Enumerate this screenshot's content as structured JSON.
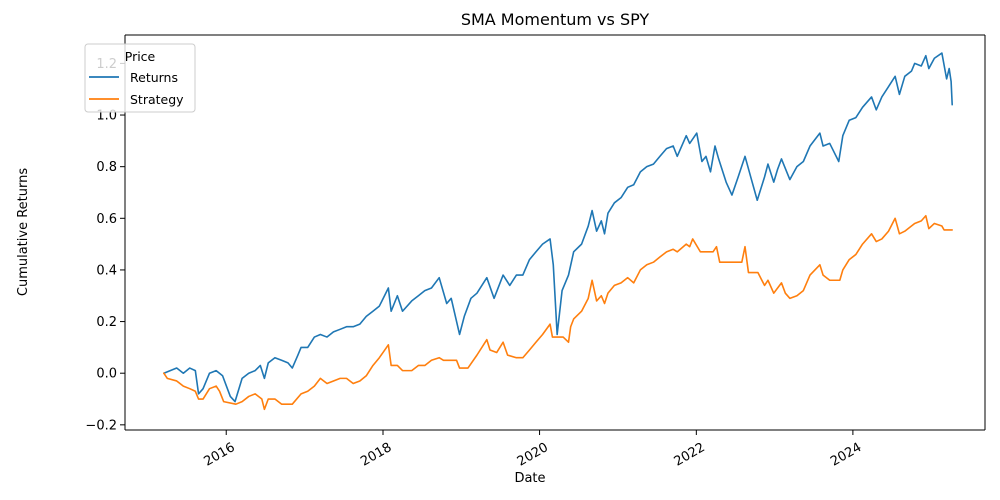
{
  "chart_data": {
    "type": "line",
    "title": "SMA Momentum vs SPY",
    "xlabel": "Date",
    "ylabel": "Cumulative Returns",
    "x_type": "date",
    "xlim": [
      "2014-09-16",
      "2025-09-08"
    ],
    "ylim": [
      -0.22,
      1.31
    ],
    "x_ticks": [
      {
        "label": "2016",
        "date": "2016-01-01"
      },
      {
        "label": "2018",
        "date": "2018-01-01"
      },
      {
        "label": "2020",
        "date": "2020-01-01"
      },
      {
        "label": "2022",
        "date": "2022-01-01"
      },
      {
        "label": "2024",
        "date": "2024-01-01"
      }
    ],
    "y_ticks": [
      {
        "label": "−0.2",
        "value": -0.2
      },
      {
        "label": "0.0",
        "value": 0.0
      },
      {
        "label": "0.2",
        "value": 0.2
      },
      {
        "label": "0.4",
        "value": 0.4
      },
      {
        "label": "0.6",
        "value": 0.6
      },
      {
        "label": "0.8",
        "value": 0.8
      },
      {
        "label": "1.0",
        "value": 1.0
      },
      {
        "label": "1.2",
        "value": 1.2
      }
    ],
    "grid": false,
    "legend": {
      "title": "Price",
      "position": "upper-left"
    },
    "series": [
      {
        "name": "Returns",
        "color": "#1f77b4",
        "points": [
          [
            "2015-03-16",
            0.0
          ],
          [
            "2015-04-15",
            0.01
          ],
          [
            "2015-05-15",
            0.02
          ],
          [
            "2015-06-15",
            0.0
          ],
          [
            "2015-07-15",
            0.02
          ],
          [
            "2015-08-10",
            0.01
          ],
          [
            "2015-08-25",
            -0.08
          ],
          [
            "2015-09-15",
            -0.06
          ],
          [
            "2015-10-15",
            0.0
          ],
          [
            "2015-11-15",
            0.01
          ],
          [
            "2015-12-15",
            -0.01
          ],
          [
            "2016-01-20",
            -0.09
          ],
          [
            "2016-02-11",
            -0.11
          ],
          [
            "2016-03-15",
            -0.02
          ],
          [
            "2016-04-15",
            0.0
          ],
          [
            "2016-05-15",
            0.01
          ],
          [
            "2016-06-08",
            0.03
          ],
          [
            "2016-06-27",
            -0.02
          ],
          [
            "2016-07-15",
            0.04
          ],
          [
            "2016-08-15",
            0.06
          ],
          [
            "2016-09-15",
            0.05
          ],
          [
            "2016-10-15",
            0.04
          ],
          [
            "2016-11-04",
            0.02
          ],
          [
            "2016-11-30",
            0.07
          ],
          [
            "2016-12-15",
            0.1
          ],
          [
            "2017-01-15",
            0.1
          ],
          [
            "2017-02-15",
            0.14
          ],
          [
            "2017-03-15",
            0.15
          ],
          [
            "2017-04-15",
            0.14
          ],
          [
            "2017-05-15",
            0.16
          ],
          [
            "2017-06-15",
            0.17
          ],
          [
            "2017-07-15",
            0.18
          ],
          [
            "2017-08-15",
            0.18
          ],
          [
            "2017-09-15",
            0.19
          ],
          [
            "2017-10-15",
            0.22
          ],
          [
            "2017-11-15",
            0.24
          ],
          [
            "2017-12-15",
            0.26
          ],
          [
            "2018-01-26",
            0.33
          ],
          [
            "2018-02-08",
            0.24
          ],
          [
            "2018-03-09",
            0.3
          ],
          [
            "2018-04-02",
            0.24
          ],
          [
            "2018-05-15",
            0.28
          ],
          [
            "2018-06-15",
            0.3
          ],
          [
            "2018-07-15",
            0.32
          ],
          [
            "2018-08-15",
            0.33
          ],
          [
            "2018-09-20",
            0.37
          ],
          [
            "2018-10-25",
            0.27
          ],
          [
            "2018-11-15",
            0.29
          ],
          [
            "2018-12-24",
            0.15
          ],
          [
            "2019-01-15",
            0.22
          ],
          [
            "2019-02-15",
            0.29
          ],
          [
            "2019-03-15",
            0.31
          ],
          [
            "2019-04-30",
            0.37
          ],
          [
            "2019-06-03",
            0.29
          ],
          [
            "2019-07-15",
            0.38
          ],
          [
            "2019-08-15",
            0.34
          ],
          [
            "2019-09-15",
            0.38
          ],
          [
            "2019-10-15",
            0.38
          ],
          [
            "2019-11-15",
            0.44
          ],
          [
            "2019-12-15",
            0.47
          ],
          [
            "2020-01-15",
            0.5
          ],
          [
            "2020-02-19",
            0.52
          ],
          [
            "2020-03-05",
            0.42
          ],
          [
            "2020-03-23",
            0.15
          ],
          [
            "2020-04-15",
            0.32
          ],
          [
            "2020-05-15",
            0.38
          ],
          [
            "2020-06-08",
            0.47
          ],
          [
            "2020-07-15",
            0.5
          ],
          [
            "2020-08-15",
            0.57
          ],
          [
            "2020-09-02",
            0.63
          ],
          [
            "2020-09-23",
            0.55
          ],
          [
            "2020-10-15",
            0.59
          ],
          [
            "2020-10-30",
            0.54
          ],
          [
            "2020-11-15",
            0.62
          ],
          [
            "2020-12-15",
            0.66
          ],
          [
            "2021-01-15",
            0.68
          ],
          [
            "2021-02-15",
            0.72
          ],
          [
            "2021-03-15",
            0.73
          ],
          [
            "2021-04-15",
            0.78
          ],
          [
            "2021-05-15",
            0.8
          ],
          [
            "2021-06-15",
            0.81
          ],
          [
            "2021-07-15",
            0.84
          ],
          [
            "2021-08-15",
            0.87
          ],
          [
            "2021-09-15",
            0.88
          ],
          [
            "2021-10-04",
            0.84
          ],
          [
            "2021-11-15",
            0.92
          ],
          [
            "2021-12-01",
            0.89
          ],
          [
            "2022-01-03",
            0.93
          ],
          [
            "2022-01-27",
            0.82
          ],
          [
            "2022-02-15",
            0.84
          ],
          [
            "2022-03-08",
            0.78
          ],
          [
            "2022-03-29",
            0.88
          ],
          [
            "2022-04-15",
            0.83
          ],
          [
            "2022-05-20",
            0.74
          ],
          [
            "2022-06-16",
            0.69
          ],
          [
            "2022-07-15",
            0.76
          ],
          [
            "2022-08-16",
            0.84
          ],
          [
            "2022-09-15",
            0.75
          ],
          [
            "2022-10-12",
            0.67
          ],
          [
            "2022-11-15",
            0.76
          ],
          [
            "2022-12-01",
            0.81
          ],
          [
            "2022-12-28",
            0.74
          ],
          [
            "2023-01-15",
            0.79
          ],
          [
            "2023-02-02",
            0.83
          ],
          [
            "2023-03-13",
            0.75
          ],
          [
            "2023-04-15",
            0.8
          ],
          [
            "2023-05-15",
            0.82
          ],
          [
            "2023-06-15",
            0.88
          ],
          [
            "2023-07-31",
            0.93
          ],
          [
            "2023-08-15",
            0.88
          ],
          [
            "2023-09-15",
            0.89
          ],
          [
            "2023-10-27",
            0.82
          ],
          [
            "2023-11-15",
            0.92
          ],
          [
            "2023-12-15",
            0.98
          ],
          [
            "2024-01-15",
            0.99
          ],
          [
            "2024-02-15",
            1.03
          ],
          [
            "2024-03-28",
            1.07
          ],
          [
            "2024-04-19",
            1.02
          ],
          [
            "2024-05-15",
            1.07
          ],
          [
            "2024-06-15",
            1.11
          ],
          [
            "2024-07-16",
            1.15
          ],
          [
            "2024-08-05",
            1.08
          ],
          [
            "2024-08-30",
            1.15
          ],
          [
            "2024-09-30",
            1.17
          ],
          [
            "2024-10-15",
            1.2
          ],
          [
            "2024-11-15",
            1.19
          ],
          [
            "2024-12-06",
            1.23
          ],
          [
            "2024-12-20",
            1.18
          ],
          [
            "2025-01-15",
            1.22
          ],
          [
            "2025-02-19",
            1.24
          ],
          [
            "2025-03-13",
            1.14
          ],
          [
            "2025-03-25",
            1.18
          ],
          [
            "2025-04-03",
            1.13
          ],
          [
            "2025-04-08",
            1.04
          ]
        ]
      },
      {
        "name": "Strategy",
        "color": "#ff7f0e",
        "points": [
          [
            "2015-03-16",
            0.0
          ],
          [
            "2015-04-01",
            -0.02
          ],
          [
            "2015-05-15",
            -0.03
          ],
          [
            "2015-06-15",
            -0.05
          ],
          [
            "2015-07-15",
            -0.06
          ],
          [
            "2015-08-10",
            -0.07
          ],
          [
            "2015-08-25",
            -0.1
          ],
          [
            "2015-09-15",
            -0.1
          ],
          [
            "2015-10-15",
            -0.06
          ],
          [
            "2015-11-15",
            -0.05
          ],
          [
            "2015-12-01",
            -0.07
          ],
          [
            "2015-12-20",
            -0.11
          ],
          [
            "2016-02-15",
            -0.12
          ],
          [
            "2016-03-15",
            -0.11
          ],
          [
            "2016-04-15",
            -0.09
          ],
          [
            "2016-05-15",
            -0.08
          ],
          [
            "2016-06-15",
            -0.1
          ],
          [
            "2016-06-27",
            -0.14
          ],
          [
            "2016-07-15",
            -0.1
          ],
          [
            "2016-08-15",
            -0.1
          ],
          [
            "2016-09-15",
            -0.12
          ],
          [
            "2016-11-04",
            -0.12
          ],
          [
            "2016-12-15",
            -0.08
          ],
          [
            "2017-01-15",
            -0.07
          ],
          [
            "2017-02-15",
            -0.05
          ],
          [
            "2017-03-15",
            -0.02
          ],
          [
            "2017-04-15",
            -0.04
          ],
          [
            "2017-05-15",
            -0.03
          ],
          [
            "2017-06-15",
            -0.02
          ],
          [
            "2017-07-15",
            -0.02
          ],
          [
            "2017-08-15",
            -0.04
          ],
          [
            "2017-09-15",
            -0.03
          ],
          [
            "2017-10-15",
            -0.01
          ],
          [
            "2017-11-15",
            0.03
          ],
          [
            "2017-12-15",
            0.06
          ],
          [
            "2018-01-26",
            0.11
          ],
          [
            "2018-02-08",
            0.03
          ],
          [
            "2018-03-09",
            0.03
          ],
          [
            "2018-04-02",
            0.01
          ],
          [
            "2018-05-15",
            0.01
          ],
          [
            "2018-06-15",
            0.03
          ],
          [
            "2018-07-15",
            0.03
          ],
          [
            "2018-08-15",
            0.05
          ],
          [
            "2018-09-20",
            0.06
          ],
          [
            "2018-10-10",
            0.05
          ],
          [
            "2018-12-10",
            0.05
          ],
          [
            "2018-12-24",
            0.02
          ],
          [
            "2019-02-01",
            0.02
          ],
          [
            "2019-03-15",
            0.07
          ],
          [
            "2019-04-30",
            0.13
          ],
          [
            "2019-05-15",
            0.09
          ],
          [
            "2019-06-15",
            0.08
          ],
          [
            "2019-07-15",
            0.12
          ],
          [
            "2019-08-05",
            0.07
          ],
          [
            "2019-09-15",
            0.06
          ],
          [
            "2019-10-15",
            0.06
          ],
          [
            "2019-11-15",
            0.09
          ],
          [
            "2019-12-15",
            0.12
          ],
          [
            "2020-01-15",
            0.15
          ],
          [
            "2020-02-19",
            0.19
          ],
          [
            "2020-03-01",
            0.14
          ],
          [
            "2020-04-20",
            0.14
          ],
          [
            "2020-05-15",
            0.12
          ],
          [
            "2020-05-25",
            0.18
          ],
          [
            "2020-06-08",
            0.21
          ],
          [
            "2020-07-15",
            0.24
          ],
          [
            "2020-08-15",
            0.29
          ],
          [
            "2020-09-02",
            0.36
          ],
          [
            "2020-09-23",
            0.28
          ],
          [
            "2020-10-15",
            0.3
          ],
          [
            "2020-10-30",
            0.27
          ],
          [
            "2020-11-15",
            0.31
          ],
          [
            "2020-12-15",
            0.34
          ],
          [
            "2021-01-15",
            0.35
          ],
          [
            "2021-02-15",
            0.37
          ],
          [
            "2021-03-15",
            0.35
          ],
          [
            "2021-04-15",
            0.4
          ],
          [
            "2021-05-15",
            0.42
          ],
          [
            "2021-06-15",
            0.43
          ],
          [
            "2021-07-15",
            0.45
          ],
          [
            "2021-08-15",
            0.47
          ],
          [
            "2021-09-15",
            0.48
          ],
          [
            "2021-10-04",
            0.47
          ],
          [
            "2021-11-15",
            0.5
          ],
          [
            "2021-12-01",
            0.49
          ],
          [
            "2021-12-15",
            0.52
          ],
          [
            "2022-01-20",
            0.47
          ],
          [
            "2022-03-20",
            0.47
          ],
          [
            "2022-04-05",
            0.49
          ],
          [
            "2022-04-20",
            0.43
          ],
          [
            "2022-08-01",
            0.43
          ],
          [
            "2022-08-16",
            0.49
          ],
          [
            "2022-09-01",
            0.39
          ],
          [
            "2022-10-15",
            0.39
          ],
          [
            "2022-11-15",
            0.34
          ],
          [
            "2022-12-01",
            0.36
          ],
          [
            "2022-12-28",
            0.31
          ],
          [
            "2023-01-15",
            0.33
          ],
          [
            "2023-02-02",
            0.35
          ],
          [
            "2023-02-20",
            0.31
          ],
          [
            "2023-03-13",
            0.29
          ],
          [
            "2023-04-15",
            0.3
          ],
          [
            "2023-05-15",
            0.32
          ],
          [
            "2023-06-15",
            0.38
          ],
          [
            "2023-07-31",
            0.42
          ],
          [
            "2023-08-15",
            0.38
          ],
          [
            "2023-09-15",
            0.36
          ],
          [
            "2023-11-01",
            0.36
          ],
          [
            "2023-11-15",
            0.4
          ],
          [
            "2023-12-15",
            0.44
          ],
          [
            "2024-01-15",
            0.46
          ],
          [
            "2024-02-15",
            0.5
          ],
          [
            "2024-03-28",
            0.54
          ],
          [
            "2024-04-19",
            0.51
          ],
          [
            "2024-05-15",
            0.52
          ],
          [
            "2024-06-15",
            0.55
          ],
          [
            "2024-07-16",
            0.6
          ],
          [
            "2024-08-05",
            0.54
          ],
          [
            "2024-08-30",
            0.55
          ],
          [
            "2024-09-30",
            0.57
          ],
          [
            "2024-10-15",
            0.58
          ],
          [
            "2024-11-15",
            0.59
          ],
          [
            "2024-12-06",
            0.61
          ],
          [
            "2024-12-20",
            0.56
          ],
          [
            "2025-01-15",
            0.58
          ],
          [
            "2025-02-19",
            0.57
          ],
          [
            "2025-03-01",
            0.555
          ],
          [
            "2025-04-08",
            0.555
          ]
        ]
      }
    ]
  }
}
